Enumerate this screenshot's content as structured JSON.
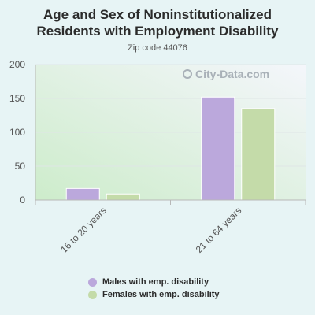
{
  "chart_data": {
    "type": "bar",
    "title_lines": [
      "Age and Sex of Noninstitutionalized",
      "Residents with Employment Disability"
    ],
    "subtitle": "Zip code 44076",
    "categories": [
      "16 to 20 years",
      "21 to 64 years"
    ],
    "series": [
      {
        "name": "Males with emp. disability",
        "values": [
          17,
          152
        ],
        "color": "#bba8dc"
      },
      {
        "name": "Females with emp. disability",
        "values": [
          9,
          135
        ],
        "color": "#c4dba9"
      }
    ],
    "ylim": [
      0,
      200
    ],
    "yticks": [
      "0",
      "50",
      "100",
      "150",
      "200"
    ],
    "grid": true,
    "legend_position": "bottom"
  },
  "watermark": "City-Data.com"
}
